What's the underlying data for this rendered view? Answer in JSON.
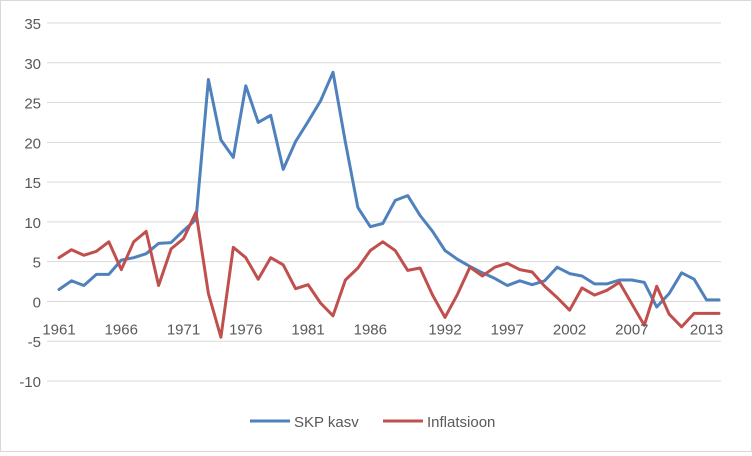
{
  "chart_data": {
    "type": "line",
    "title": "",
    "xlabel": "",
    "ylabel": "",
    "ylim": [
      -10,
      35
    ],
    "yticks": [
      -10,
      -5,
      0,
      5,
      10,
      15,
      20,
      25,
      30,
      35
    ],
    "x": [
      1961,
      1962,
      1963,
      1964,
      1965,
      1966,
      1967,
      1968,
      1969,
      1970,
      1971,
      1972,
      1973,
      1974,
      1975,
      1976,
      1977,
      1978,
      1979,
      1980,
      1981,
      1982,
      1983,
      1984,
      1985,
      1986,
      1987,
      1988,
      1989,
      1990,
      1991,
      1992,
      1993,
      1994,
      1995,
      1996,
      1997,
      1998,
      1999,
      2000,
      2001,
      2002,
      2003,
      2004,
      2005,
      2006,
      2007,
      2008,
      2009,
      2010,
      2011,
      2012,
      2013,
      2014
    ],
    "xtick_labels": [
      "1961",
      "1966",
      "1971",
      "1976",
      "1981",
      "1986",
      "1992",
      "1997",
      "2002",
      "2007",
      "2013"
    ],
    "xtick_values": [
      1961,
      1966,
      1971,
      1976,
      1981,
      1986,
      1992,
      1997,
      2002,
      2007,
      2013
    ],
    "grid": true,
    "legend_position": "bottom",
    "series": [
      {
        "name": "SKP kasv",
        "color": "#4f81bd",
        "values": [
          1.5,
          2.6,
          2.0,
          3.4,
          3.4,
          5.2,
          5.5,
          6.0,
          7.3,
          7.4,
          8.9,
          10.3,
          27.9,
          20.3,
          18.1,
          27.1,
          22.5,
          23.4,
          16.6,
          20.1,
          22.6,
          25.2,
          28.8,
          20.0,
          11.8,
          9.4,
          9.8,
          12.7,
          13.3,
          10.8,
          8.8,
          6.4,
          5.3,
          4.4,
          3.6,
          2.9,
          2.0,
          2.6,
          2.1,
          2.6,
          4.3,
          3.5,
          3.2,
          2.2,
          2.2,
          2.7,
          2.7,
          2.4,
          -0.7,
          1.0,
          3.6,
          2.8,
          0.2,
          0.2
        ],
        "line_width": 3
      },
      {
        "name": "Inflatsioon",
        "color": "#c0504d",
        "values": [
          5.5,
          6.5,
          5.8,
          6.3,
          7.5,
          4.0,
          7.5,
          8.8,
          2.0,
          6.6,
          7.9,
          11.2,
          1.0,
          -4.5,
          6.8,
          5.5,
          2.8,
          5.5,
          4.6,
          1.6,
          2.1,
          -0.2,
          -1.8,
          2.7,
          4.2,
          6.4,
          7.5,
          6.4,
          3.9,
          4.2,
          0.8,
          -2.0,
          0.9,
          4.3,
          3.2,
          4.3,
          4.8,
          4.0,
          3.7,
          1.9,
          0.5,
          -1.1,
          1.7,
          0.8,
          1.4,
          2.4,
          -0.3,
          -3.0,
          1.9,
          -1.6,
          -3.2,
          -1.5,
          -1.5,
          -1.5
        ],
        "line_width": 3
      }
    ]
  }
}
